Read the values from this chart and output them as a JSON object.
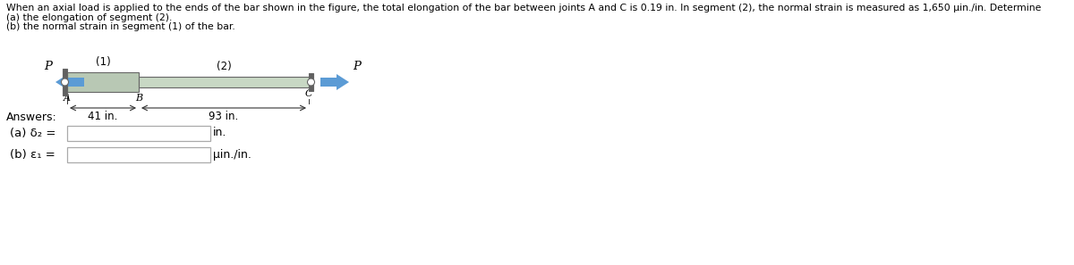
{
  "title_text": "When an axial load is applied to the ends of the bar shown in the figure, the total elongation of the bar between joints A and C is 0.19 in. In segment (2), the normal strain is measured as 1,650 μin./in. Determine",
  "line2": "(a) the elongation of segment (2).",
  "line3": "(b) the normal strain in segment (1) of the bar.",
  "answers_label": "Answers:",
  "answer_a_label": "(a) δ₂ =",
  "answer_a_unit": "in.",
  "answer_b_label": "(b) ε₁ =",
  "answer_b_unit": "μin./in.",
  "seg1_label": "(1)",
  "seg2_label": "(2)",
  "dim1": "41 in.",
  "dim2": "93 in.",
  "label_A": "A",
  "label_B": "B",
  "label_C": "C",
  "label_P_left": "P",
  "label_P_right": "P",
  "bg_color": "#ffffff",
  "bar1_color": "#b8c8b4",
  "bar2_color": "#c8d8c4",
  "bar_outline": "#666666",
  "plate_color": "#606060",
  "arrow_color": "#5b9bd5",
  "text_color": "#000000",
  "input_box_color": "#ffffff",
  "input_box_border": "#aaaaaa",
  "circle_color": "#888888",
  "dim_line_color": "#333333"
}
